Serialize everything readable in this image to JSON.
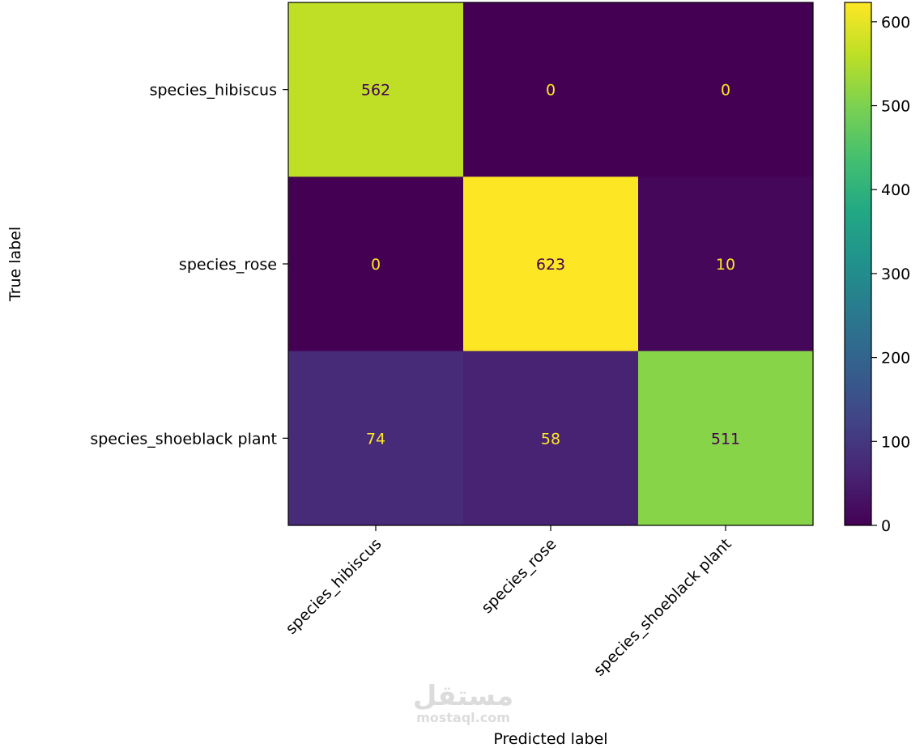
{
  "chart_data": {
    "type": "heatmap",
    "title": "",
    "xlabel": "Predicted label",
    "ylabel": "True label",
    "x_categories": [
      "species_hibiscus",
      "species_rose",
      "species_shoeblack plant"
    ],
    "y_categories": [
      "species_hibiscus",
      "species_rose",
      "species_shoeblack plant"
    ],
    "matrix": [
      [
        562,
        0,
        0
      ],
      [
        0,
        623,
        10
      ],
      [
        74,
        58,
        511
      ]
    ],
    "colormap": "viridis",
    "colorbar": {
      "range": [
        0,
        623
      ],
      "ticks": [
        0,
        100,
        200,
        300,
        400,
        500,
        600
      ]
    },
    "text_colors": {
      "on_dark": "#fde725",
      "on_light": "#440154"
    }
  },
  "watermark": {
    "arabic": "مستقل",
    "latin": "mostaql.com"
  }
}
